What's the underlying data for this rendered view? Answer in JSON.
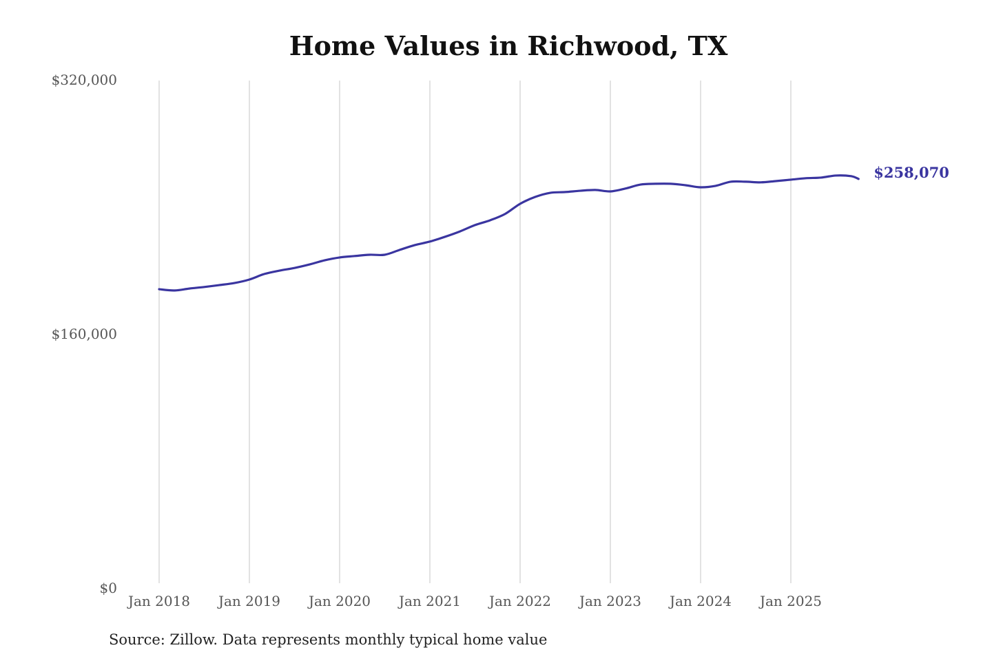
{
  "chart_data": {
    "type": "line",
    "title": "Home Values in Richwood, TX",
    "xlabel": "",
    "ylabel": "",
    "source": "Source: Zillow. Data represents monthly typical home value",
    "ylim": [
      0,
      320000
    ],
    "y_ticks": [
      {
        "value": 0,
        "label": "$0"
      },
      {
        "value": 160000,
        "label": "$160,000"
      },
      {
        "value": 320000,
        "label": "$320,000"
      }
    ],
    "x_ticks": [
      {
        "value": "2018-01",
        "label": "Jan 2018"
      },
      {
        "value": "2019-01",
        "label": "Jan 2019"
      },
      {
        "value": "2020-01",
        "label": "Jan 2020"
      },
      {
        "value": "2021-01",
        "label": "Jan 2021"
      },
      {
        "value": "2022-01",
        "label": "Jan 2022"
      },
      {
        "value": "2023-01",
        "label": "Jan 2023"
      },
      {
        "value": "2024-01",
        "label": "Jan 2024"
      },
      {
        "value": "2025-01",
        "label": "Jan 2025"
      }
    ],
    "grid": "vertical",
    "line_color": "#3a35a0",
    "end_label": "$258,070",
    "series": [
      {
        "x": [
          "2018-01",
          "2018-03",
          "2018-05",
          "2018-07",
          "2018-09",
          "2018-11",
          "2019-01",
          "2019-03",
          "2019-05",
          "2019-07",
          "2019-09",
          "2019-11",
          "2020-01",
          "2020-03",
          "2020-05",
          "2020-07",
          "2020-09",
          "2020-11",
          "2021-01",
          "2021-03",
          "2021-05",
          "2021-07",
          "2021-09",
          "2021-11",
          "2022-01",
          "2022-03",
          "2022-05",
          "2022-07",
          "2022-09",
          "2022-11",
          "2023-01",
          "2023-03",
          "2023-05",
          "2023-07",
          "2023-09",
          "2023-11",
          "2024-01",
          "2024-03",
          "2024-05",
          "2024-07",
          "2024-09",
          "2024-11",
          "2025-01",
          "2025-03",
          "2025-05",
          "2025-07",
          "2025-09",
          "2025-10"
        ],
        "values": [
          188600,
          187800,
          189000,
          190000,
          191200,
          192500,
          194700,
          198200,
          200300,
          202000,
          204200,
          206800,
          208600,
          209500,
          210300,
          210300,
          213400,
          216400,
          218600,
          221600,
          225000,
          229000,
          232000,
          236000,
          242400,
          246700,
          249300,
          249800,
          250600,
          251100,
          250200,
          252000,
          254500,
          255000,
          255000,
          254100,
          252800,
          253700,
          256300,
          256300,
          255900,
          256700,
          257600,
          258500,
          258900,
          260200,
          259800,
          258070
        ]
      }
    ]
  }
}
